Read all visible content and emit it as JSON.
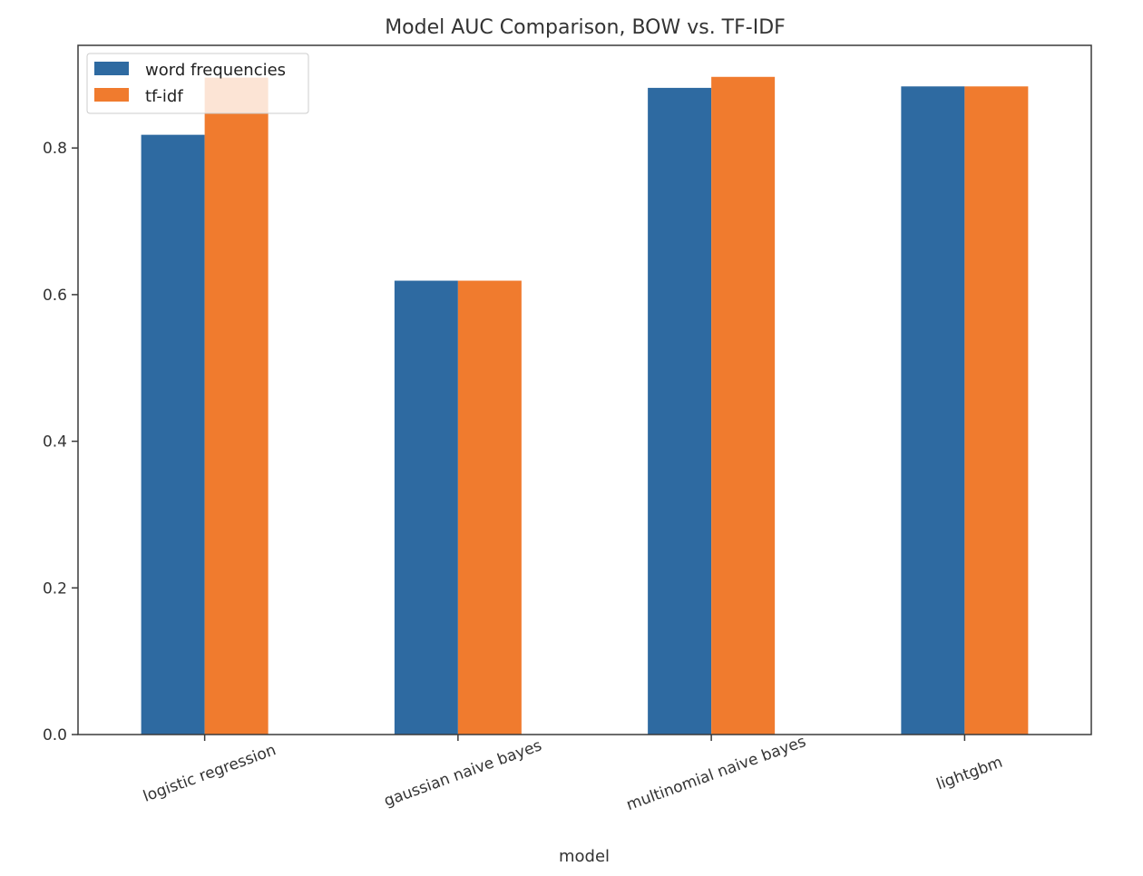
{
  "chart_data": {
    "type": "bar",
    "title": "Model AUC Comparison, BOW vs. TF-IDF",
    "xlabel": "model",
    "ylabel": "",
    "categories": [
      "logistic regression",
      "gaussian naive bayes",
      "multinomial naive bayes",
      "lightgbm"
    ],
    "series": [
      {
        "name": "word frequencies",
        "color": "#2e6aa1",
        "values": [
          0.818,
          0.619,
          0.882,
          0.884
        ]
      },
      {
        "name": "tf-idf",
        "color": "#f07b2e",
        "values": [
          0.896,
          0.619,
          0.897,
          0.884
        ]
      }
    ],
    "yticks": [
      0.0,
      0.2,
      0.4,
      0.6,
      0.8
    ],
    "ytick_labels": [
      "0.0",
      "0.2",
      "0.4",
      "0.6",
      "0.8"
    ],
    "ylim": [
      0,
      0.94
    ],
    "grid": false,
    "legend_position": "upper left",
    "xtick_rotation_deg": 20
  }
}
